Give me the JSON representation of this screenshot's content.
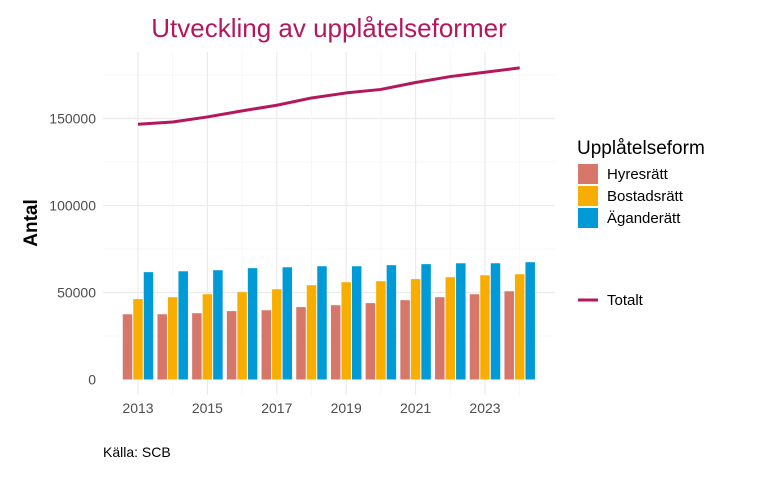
{
  "chart_data": {
    "type": "bar+line",
    "title": "Utveckling av upplåtelseformer",
    "xlabel": "",
    "ylabel": "Antal",
    "caption": "Källa: SCB",
    "x": [
      2013,
      2014,
      2015,
      2016,
      2017,
      2018,
      2019,
      2020,
      2021,
      2022,
      2023,
      2024
    ],
    "x_tick_labels": [
      "2013",
      "2015",
      "2017",
      "2019",
      "2021",
      "2023"
    ],
    "x_ticks": [
      2013,
      2015,
      2017,
      2019,
      2021,
      2023
    ],
    "y_ticks": [
      0,
      50000,
      100000,
      150000
    ],
    "y_tick_labels": [
      "0",
      "50000",
      "100000",
      "150000"
    ],
    "ylim": [
      -8600,
      188500
    ],
    "grid": true,
    "legend_title": "Upplåtelseform",
    "legend_placement": "right",
    "series": [
      {
        "name": "Hyresrätt",
        "type": "bar",
        "color": "#D6776A",
        "values": [
          37500,
          37500,
          38100,
          39300,
          39800,
          41600,
          42700,
          43900,
          45600,
          47300,
          49000,
          50700
        ]
      },
      {
        "name": "Bostadsrätt",
        "type": "bar",
        "color": "#F8AE00",
        "values": [
          46200,
          47300,
          49000,
          50200,
          51900,
          54200,
          55900,
          56500,
          57700,
          58800,
          59900,
          60500
        ]
      },
      {
        "name": "Äganderätt",
        "type": "bar",
        "color": "#009BD6",
        "values": [
          61700,
          62200,
          62800,
          64000,
          64500,
          65100,
          65100,
          65700,
          66300,
          66800,
          66800,
          67400
        ]
      },
      {
        "name": "Totalt",
        "type": "line",
        "color": "#B5175F",
        "values": [
          146700,
          148000,
          150900,
          154400,
          157600,
          161800,
          164700,
          166700,
          170700,
          174100,
          176600,
          179100
        ]
      }
    ]
  }
}
